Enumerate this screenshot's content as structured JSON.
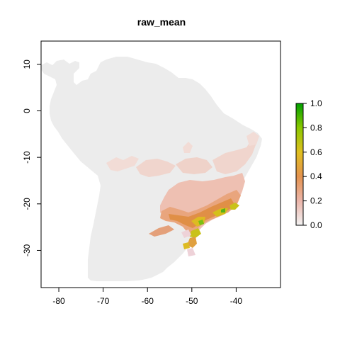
{
  "chart_data": {
    "type": "heatmap",
    "title": "raw_mean",
    "xlabel": "",
    "ylabel": "",
    "xlim": [
      -84,
      -30
    ],
    "ylim": [
      -38,
      15
    ],
    "x_ticks": [
      -80,
      -70,
      -60,
      -50,
      -40
    ],
    "y_ticks": [
      10,
      0,
      -10,
      -20,
      -30
    ],
    "x_tick_labels": [
      "-80",
      "-70",
      "-60",
      "-50",
      "-40"
    ],
    "y_tick_labels": [
      "10",
      "0",
      "-10",
      "-20",
      "-30"
    ],
    "legend": {
      "placement": "right",
      "range": [
        0,
        1
      ],
      "ticks": [
        1.0,
        0.8,
        0.6,
        0.4,
        0.2,
        0.0
      ],
      "tick_labels": [
        "1.0",
        "0.8",
        "0.6",
        "0.4",
        "0.2",
        "0.0"
      ],
      "colors": [
        "#f2f2f2",
        "#ebb5aa",
        "#e4934f",
        "#e0bf20",
        "#8bc800",
        "#00a000"
      ]
    },
    "land_color": "#ececec"
  }
}
